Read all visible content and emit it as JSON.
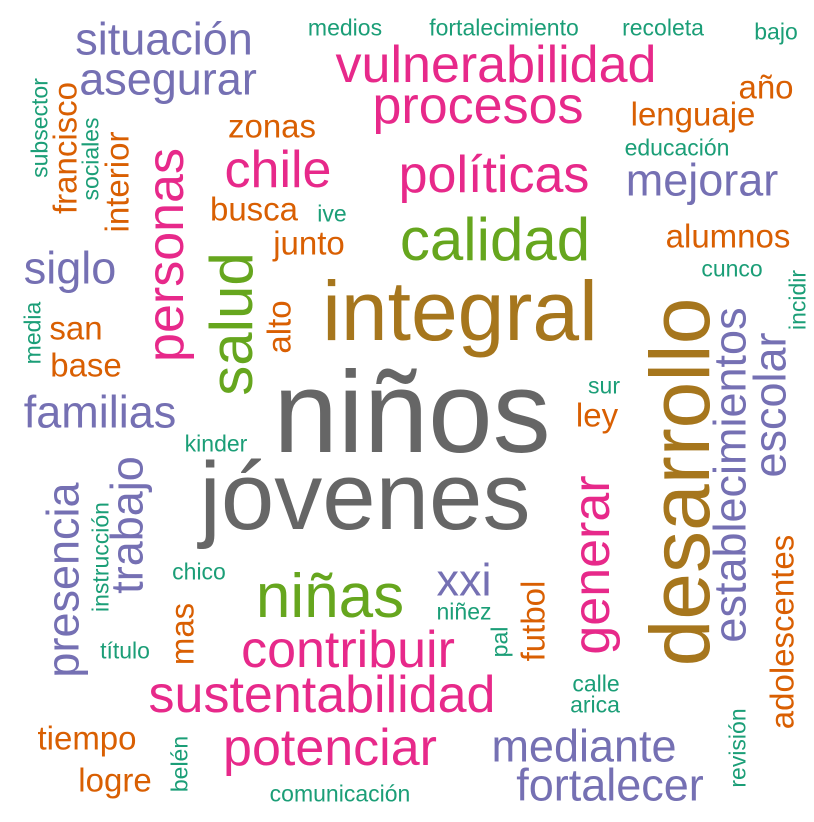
{
  "colors": {
    "gray": "#666666",
    "gold": "#A6761D",
    "green": "#66A61E",
    "magenta": "#E7298A",
    "purple": "#7570B3",
    "orange": "#D95F02",
    "teal": "#1B9E77"
  },
  "words": [
    {
      "id": "ninos",
      "text": "niños",
      "color": "gray",
      "rot": 0
    },
    {
      "id": "jovenes",
      "text": "jóvenes",
      "color": "gray",
      "rot": 0
    },
    {
      "id": "integral",
      "text": "integral",
      "color": "gold",
      "rot": 0
    },
    {
      "id": "desarrollo",
      "text": "desarrollo",
      "color": "gold",
      "rot": -90
    },
    {
      "id": "calidad",
      "text": "calidad",
      "color": "green",
      "rot": 0
    },
    {
      "id": "salud",
      "text": "salud",
      "color": "green",
      "rot": -90
    },
    {
      "id": "ninas",
      "text": "niñas",
      "color": "green",
      "rot": 0
    },
    {
      "id": "vulnerabilidad",
      "text": "vulnerabilidad",
      "color": "magenta",
      "rot": 0
    },
    {
      "id": "procesos",
      "text": "procesos",
      "color": "magenta",
      "rot": 0
    },
    {
      "id": "chile",
      "text": "chile",
      "color": "magenta",
      "rot": 0
    },
    {
      "id": "politicas",
      "text": "políticas",
      "color": "magenta",
      "rot": 0
    },
    {
      "id": "personas",
      "text": "personas",
      "color": "magenta",
      "rot": -90
    },
    {
      "id": "generar",
      "text": "generar",
      "color": "magenta",
      "rot": -90
    },
    {
      "id": "contribuir",
      "text": "contribuir",
      "color": "magenta",
      "rot": 0
    },
    {
      "id": "sustentabilidad",
      "text": "sustentabilidad",
      "color": "magenta",
      "rot": 0
    },
    {
      "id": "potenciar",
      "text": "potenciar",
      "color": "magenta",
      "rot": 0
    },
    {
      "id": "situacion",
      "text": "situación",
      "color": "purple",
      "rot": 0
    },
    {
      "id": "asegurar",
      "text": "asegurar",
      "color": "purple",
      "rot": 0
    },
    {
      "id": "mejorar",
      "text": "mejorar",
      "color": "purple",
      "rot": 0
    },
    {
      "id": "siglo",
      "text": "siglo",
      "color": "purple",
      "rot": 0
    },
    {
      "id": "familias",
      "text": "familias",
      "color": "purple",
      "rot": 0
    },
    {
      "id": "trabajo",
      "text": "trabajo",
      "color": "purple",
      "rot": -90
    },
    {
      "id": "presencia",
      "text": "presencia",
      "color": "purple",
      "rot": -90
    },
    {
      "id": "xxi",
      "text": "xxi",
      "color": "purple",
      "rot": 0
    },
    {
      "id": "mediante",
      "text": "mediante",
      "color": "purple",
      "rot": 0
    },
    {
      "id": "fortalecer",
      "text": "fortalecer",
      "color": "purple",
      "rot": 0
    },
    {
      "id": "establecimientos",
      "text": "establecimientos",
      "color": "purple",
      "rot": -90
    },
    {
      "id": "escolar",
      "text": "escolar",
      "color": "purple",
      "rot": -90
    },
    {
      "id": "ano",
      "text": "año",
      "color": "orange",
      "rot": 0
    },
    {
      "id": "lenguaje",
      "text": "lenguaje",
      "color": "orange",
      "rot": 0
    },
    {
      "id": "zonas",
      "text": "zonas",
      "color": "orange",
      "rot": 0
    },
    {
      "id": "busca",
      "text": "busca",
      "color": "orange",
      "rot": 0
    },
    {
      "id": "junto",
      "text": "junto",
      "color": "orange",
      "rot": 0
    },
    {
      "id": "alumnos",
      "text": "alumnos",
      "color": "orange",
      "rot": 0
    },
    {
      "id": "francisco",
      "text": "francisco",
      "color": "orange",
      "rot": -90
    },
    {
      "id": "interior",
      "text": "interior",
      "color": "orange",
      "rot": -90
    },
    {
      "id": "san",
      "text": "san",
      "color": "orange",
      "rot": 0
    },
    {
      "id": "base",
      "text": "base",
      "color": "orange",
      "rot": 0
    },
    {
      "id": "alto",
      "text": "alto",
      "color": "orange",
      "rot": -90
    },
    {
      "id": "ley",
      "text": "ley",
      "color": "orange",
      "rot": 0
    },
    {
      "id": "mas",
      "text": "mas",
      "color": "orange",
      "rot": -90
    },
    {
      "id": "futbol",
      "text": "futbol",
      "color": "orange",
      "rot": -90
    },
    {
      "id": "adolescentes",
      "text": "adolescentes",
      "color": "orange",
      "rot": -90
    },
    {
      "id": "tiempo",
      "text": "tiempo",
      "color": "orange",
      "rot": 0
    },
    {
      "id": "logre",
      "text": "logre",
      "color": "orange",
      "rot": 0
    },
    {
      "id": "medios",
      "text": "medios",
      "color": "teal",
      "rot": 0
    },
    {
      "id": "fortalecimiento",
      "text": "fortalecimiento",
      "color": "teal",
      "rot": 0
    },
    {
      "id": "recoleta",
      "text": "recoleta",
      "color": "teal",
      "rot": 0
    },
    {
      "id": "bajo",
      "text": "bajo",
      "color": "teal",
      "rot": 0
    },
    {
      "id": "subsector",
      "text": "subsector",
      "color": "teal",
      "rot": -90
    },
    {
      "id": "sociales",
      "text": "sociales",
      "color": "teal",
      "rot": -90
    },
    {
      "id": "educacion",
      "text": "educación",
      "color": "teal",
      "rot": 0
    },
    {
      "id": "ive",
      "text": "ive",
      "color": "teal",
      "rot": 0
    },
    {
      "id": "cunco",
      "text": "cunco",
      "color": "teal",
      "rot": 0
    },
    {
      "id": "incidir",
      "text": "incidir",
      "color": "teal",
      "rot": -90
    },
    {
      "id": "media",
      "text": "media",
      "color": "teal",
      "rot": -90
    },
    {
      "id": "sur",
      "text": "sur",
      "color": "teal",
      "rot": 0
    },
    {
      "id": "kinder",
      "text": "kinder",
      "color": "teal",
      "rot": 0
    },
    {
      "id": "instruccion",
      "text": "instrucción",
      "color": "teal",
      "rot": -90
    },
    {
      "id": "chico",
      "text": "chico",
      "color": "teal",
      "rot": 0
    },
    {
      "id": "ninez",
      "text": "niñez",
      "color": "teal",
      "rot": 0
    },
    {
      "id": "pal",
      "text": "pal",
      "color": "teal",
      "rot": -90
    },
    {
      "id": "titulo",
      "text": "título",
      "color": "teal",
      "rot": 0
    },
    {
      "id": "calle",
      "text": "calle",
      "color": "teal",
      "rot": 0
    },
    {
      "id": "arica",
      "text": "arica",
      "color": "teal",
      "rot": 0
    },
    {
      "id": "revision",
      "text": "revisión",
      "color": "teal",
      "rot": -90
    },
    {
      "id": "belen",
      "text": "belén",
      "color": "teal",
      "rot": -90
    },
    {
      "id": "comunicacion",
      "text": "comunicación",
      "color": "teal",
      "rot": 0
    }
  ]
}
